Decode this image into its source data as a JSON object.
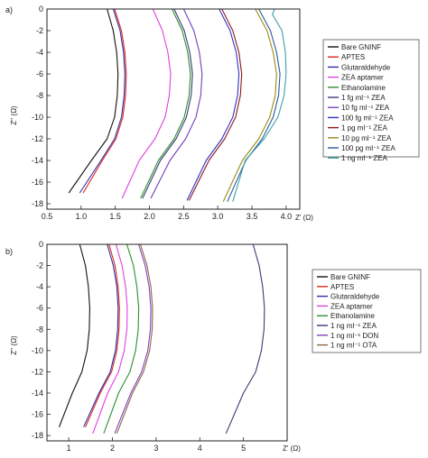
{
  "chart_data": [
    {
      "type": "line",
      "panel": "a)",
      "xlabel": "Z' (Ω)",
      "ylabel": "Z'' (Ω)",
      "xlim": [
        0.5,
        4.2
      ],
      "ylim": [
        -18.5,
        0
      ],
      "xticks": [
        "0.5",
        "1.0",
        "1.5",
        "2.0",
        "2.5",
        "3.0",
        "3.5",
        "4.0"
      ],
      "xtick_values": [
        0.5,
        1.0,
        1.5,
        2.0,
        2.5,
        3.0,
        3.5,
        4.0
      ],
      "yticks": [
        "0",
        "-2",
        "-4",
        "-6",
        "-8",
        "-10",
        "-12",
        "-14",
        "-16",
        "-18"
      ],
      "ytick_values": [
        0,
        -2,
        -4,
        -6,
        -8,
        -10,
        -12,
        -14,
        -16,
        -18
      ],
      "grid": false,
      "legend_position": "right",
      "series": [
        {
          "name": "Bare GNINF",
          "color": "#111111",
          "x": [
            1.38,
            1.47,
            1.52,
            1.54,
            1.53,
            1.49,
            1.38,
            1.15,
            0.82
          ],
          "y": [
            0,
            -2,
            -4,
            -6,
            -8,
            -10,
            -12,
            -14,
            -17
          ]
        },
        {
          "name": "APTES",
          "color": "#e0221e",
          "x": [
            1.49,
            1.59,
            1.64,
            1.66,
            1.65,
            1.61,
            1.51,
            1.31,
            1.03
          ],
          "y": [
            0,
            -2,
            -4,
            -6,
            -8,
            -10,
            -12,
            -14,
            -17
          ]
        },
        {
          "name": "Glutaraldehyde",
          "color": "#2b2fa8",
          "x": [
            1.47,
            1.57,
            1.62,
            1.64,
            1.63,
            1.59,
            1.49,
            1.29,
            0.98
          ],
          "y": [
            0,
            -2,
            -4,
            -6,
            -8,
            -10,
            -12,
            -14,
            -17
          ]
        },
        {
          "name": "ZEA aptamer",
          "color": "#e040e0",
          "x": [
            2.05,
            2.19,
            2.27,
            2.31,
            2.29,
            2.23,
            2.08,
            1.85,
            1.6
          ],
          "y": [
            0,
            -2,
            -4,
            -6,
            -8,
            -10,
            -12,
            -14,
            -17.5
          ]
        },
        {
          "name": "Ethanolamine",
          "color": "#2f8f2f",
          "x": [
            2.33,
            2.48,
            2.56,
            2.6,
            2.58,
            2.51,
            2.36,
            2.13,
            1.87
          ],
          "y": [
            0,
            -2,
            -4,
            -6,
            -8,
            -10,
            -12,
            -14,
            -17.5
          ]
        },
        {
          "name": "1 fg ml⁻¹ ZEA",
          "color": "#3a3a7a",
          "x": [
            2.36,
            2.51,
            2.59,
            2.63,
            2.61,
            2.54,
            2.39,
            2.16,
            1.9
          ],
          "y": [
            0,
            -2,
            -4,
            -6,
            -8,
            -10,
            -12,
            -14,
            -17.5
          ]
        },
        {
          "name": "10 fg ml⁻¹ ZEA",
          "color": "#7040c0",
          "x": [
            2.5,
            2.65,
            2.73,
            2.77,
            2.75,
            2.68,
            2.53,
            2.3,
            2.02
          ],
          "y": [
            0,
            -2,
            -4,
            -6,
            -8,
            -10,
            -12,
            -14,
            -17.5
          ]
        },
        {
          "name": "100 fg ml⁻¹ ZEA",
          "color": "#3030c8",
          "x": [
            3.02,
            3.18,
            3.27,
            3.31,
            3.29,
            3.22,
            3.06,
            2.83,
            2.55
          ],
          "y": [
            0,
            -2,
            -4,
            -6,
            -8,
            -10,
            -12,
            -14,
            -17.7
          ]
        },
        {
          "name": "1 pg ml⁻¹ ZEA",
          "color": "#8b1a1a",
          "x": [
            3.06,
            3.22,
            3.31,
            3.35,
            3.33,
            3.26,
            3.1,
            2.87,
            2.58
          ],
          "y": [
            0,
            -2,
            -4,
            -6,
            -8,
            -10,
            -12,
            -14,
            -17.7
          ]
        },
        {
          "name": "10 pg ml⁻¹ ZEA",
          "color": "#9a8a10",
          "x": [
            3.55,
            3.72,
            3.81,
            3.86,
            3.84,
            3.76,
            3.6,
            3.36,
            3.08
          ],
          "y": [
            0,
            -2,
            -4,
            -6,
            -8,
            -10,
            -12,
            -14,
            -17.8
          ]
        },
        {
          "name": "100 pg ml⁻¹ ZEA",
          "color": "#2a5a9a",
          "x": [
            3.6,
            3.77,
            3.86,
            3.91,
            3.89,
            3.81,
            3.65,
            3.41,
            3.14
          ],
          "y": [
            0,
            -2,
            -4,
            -6,
            -8,
            -10,
            -12,
            -14,
            -17.8
          ]
        },
        {
          "name": "1 ng ml⁻¹ ZEA",
          "color": "#3aa0a8",
          "x": [
            3.83,
            3.8,
            3.94,
            3.99,
            4.0,
            3.97,
            3.88,
            3.68,
            3.4,
            3.22
          ],
          "y": [
            0,
            -0.5,
            -2,
            -4,
            -6,
            -8,
            -10,
            -12,
            -14,
            -17.8
          ]
        }
      ]
    },
    {
      "type": "line",
      "panel": "b)",
      "xlabel": "Z' (Ω)",
      "ylabel": "Z'' (Ω)",
      "xlim": [
        0.5,
        6.0
      ],
      "ylim": [
        -18.5,
        0
      ],
      "xticks": [
        "1",
        "2",
        "3",
        "4",
        "5"
      ],
      "xtick_values": [
        1,
        2,
        3,
        4,
        5
      ],
      "yticks": [
        "0",
        "-2",
        "-4",
        "-6",
        "-8",
        "-10",
        "-12",
        "-14",
        "-16",
        "-18"
      ],
      "ytick_values": [
        0,
        -2,
        -4,
        -6,
        -8,
        -10,
        -12,
        -14,
        -16,
        -18
      ],
      "grid": false,
      "legend_position": "right",
      "series": [
        {
          "name": "Bare GNINF",
          "color": "#111111",
          "x": [
            1.25,
            1.38,
            1.45,
            1.48,
            1.47,
            1.42,
            1.3,
            1.08,
            0.78
          ],
          "y": [
            0,
            -2,
            -4,
            -6,
            -8,
            -10,
            -12,
            -14,
            -17.2
          ]
        },
        {
          "name": "APTES",
          "color": "#e0221e",
          "x": [
            1.92,
            2.06,
            2.13,
            2.16,
            2.15,
            2.1,
            1.98,
            1.72,
            1.38
          ],
          "y": [
            0,
            -2,
            -4,
            -6,
            -8,
            -10,
            -12,
            -14,
            -17.2
          ]
        },
        {
          "name": "Glutaraldehyde",
          "color": "#2b2fa8",
          "x": [
            1.88,
            2.02,
            2.1,
            2.13,
            2.12,
            2.07,
            1.95,
            1.69,
            1.34
          ],
          "y": [
            0,
            -2,
            -4,
            -6,
            -8,
            -10,
            -12,
            -14,
            -17.2
          ]
        },
        {
          "name": "ZEA aptamer",
          "color": "#e040e0",
          "x": [
            2.08,
            2.22,
            2.3,
            2.34,
            2.33,
            2.27,
            2.14,
            1.89,
            1.55
          ],
          "y": [
            0,
            -2,
            -4,
            -6,
            -8,
            -10,
            -12,
            -14,
            -17.8
          ]
        },
        {
          "name": "Ethanolamine",
          "color": "#2f8f2f",
          "x": [
            2.33,
            2.48,
            2.56,
            2.6,
            2.59,
            2.53,
            2.4,
            2.14,
            1.8
          ],
          "y": [
            0,
            -2,
            -4,
            -6,
            -8,
            -10,
            -12,
            -14,
            -17.8
          ]
        },
        {
          "name": "1 ng ml⁻¹ ZEA",
          "color": "#3a3a7a",
          "x": [
            5.22,
            5.36,
            5.44,
            5.48,
            5.47,
            5.41,
            5.28,
            5.0,
            4.6
          ],
          "y": [
            0,
            -2,
            -4,
            -6,
            -8,
            -10,
            -12,
            -14,
            -17.8
          ]
        },
        {
          "name": "1 ng ml⁻¹ DON",
          "color": "#8040c0",
          "x": [
            2.6,
            2.75,
            2.84,
            2.88,
            2.87,
            2.81,
            2.67,
            2.42,
            2.05
          ],
          "y": [
            0,
            -2,
            -4,
            -6,
            -8,
            -10,
            -12,
            -14,
            -17.8
          ]
        },
        {
          "name": "1 ng ml⁻¹ OTA",
          "color": "#8a6a4a",
          "x": [
            2.64,
            2.79,
            2.88,
            2.92,
            2.91,
            2.85,
            2.71,
            2.46,
            2.1
          ],
          "y": [
            0,
            -2,
            -4,
            -6,
            -8,
            -10,
            -12,
            -14,
            -17.8
          ]
        }
      ]
    }
  ]
}
